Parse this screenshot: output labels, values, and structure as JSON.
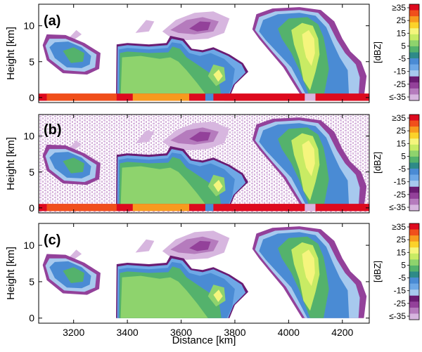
{
  "colorbar": {
    "ticks": [
      "≥35",
      "25",
      "15",
      "5",
      "-5",
      "-15",
      "-25",
      "≤-35"
    ],
    "unit": "[dBZ]",
    "colors": [
      "#dd0a1e",
      "#f04f1b",
      "#f79a1e",
      "#fbd22a",
      "#f5f57d",
      "#c8eb64",
      "#8ed36d",
      "#54b26c",
      "#2e8a88",
      "#4a8bd4",
      "#6ea8e6",
      "#a7c9ee",
      "#6a1b72",
      "#93419a",
      "#b57bbd",
      "#d7b6df"
    ]
  },
  "chart_data": [
    {
      "type": "heatmap",
      "panel_label": "(a)",
      "ylabel": "Height [km]",
      "xlabel": "",
      "xlim": [
        3070,
        4300
      ],
      "ylim": [
        -0.7,
        13
      ],
      "xticks": [
        3200,
        3400,
        3600,
        3800,
        4000,
        4200
      ],
      "xtick_labels": [],
      "yticks": [
        0,
        5,
        10
      ],
      "ytick_labels": [
        "0",
        "5",
        "10"
      ],
      "clutter_background": false,
      "surface_echo": true
    },
    {
      "type": "heatmap",
      "panel_label": "(b)",
      "ylabel": "Height [km]",
      "xlabel": "",
      "xlim": [
        3070,
        4300
      ],
      "ylim": [
        -0.7,
        13
      ],
      "xticks": [
        3200,
        3400,
        3600,
        3800,
        4000,
        4200
      ],
      "xtick_labels": [],
      "yticks": [
        0,
        5,
        10
      ],
      "ytick_labels": [
        "0",
        "5",
        "10"
      ],
      "clutter_background": true,
      "surface_echo": true
    },
    {
      "type": "heatmap",
      "panel_label": "(c)",
      "ylabel": "Height [km]",
      "xlabel": "Distance [km]",
      "xlim": [
        3070,
        4300
      ],
      "ylim": [
        -0.7,
        13
      ],
      "xticks": [
        3200,
        3400,
        3600,
        3800,
        4000,
        4200
      ],
      "xtick_labels": [
        "3200",
        "3400",
        "3600",
        "3800",
        "4000",
        "4200"
      ],
      "yticks": [
        0,
        5,
        10
      ],
      "ytick_labels": [
        "0",
        "5",
        "10"
      ],
      "clutter_background": false,
      "surface_echo": false
    }
  ],
  "cloud_systems": [
    {
      "x_start": 3090,
      "x_end": 3300,
      "base_km": 2.5,
      "top_km": 9.5,
      "peak_dbz": -5
    },
    {
      "x_start": 3360,
      "x_end": 3800,
      "base_km": 0,
      "top_km": 8.5,
      "peak_dbz": 5
    },
    {
      "x_start": 3520,
      "x_end": 3780,
      "base_km": 7.5,
      "top_km": 12,
      "peak_dbz": -25
    },
    {
      "x_start": 3850,
      "x_end": 4280,
      "base_km": 0,
      "top_km": 12.5,
      "peak_dbz": 15
    }
  ]
}
